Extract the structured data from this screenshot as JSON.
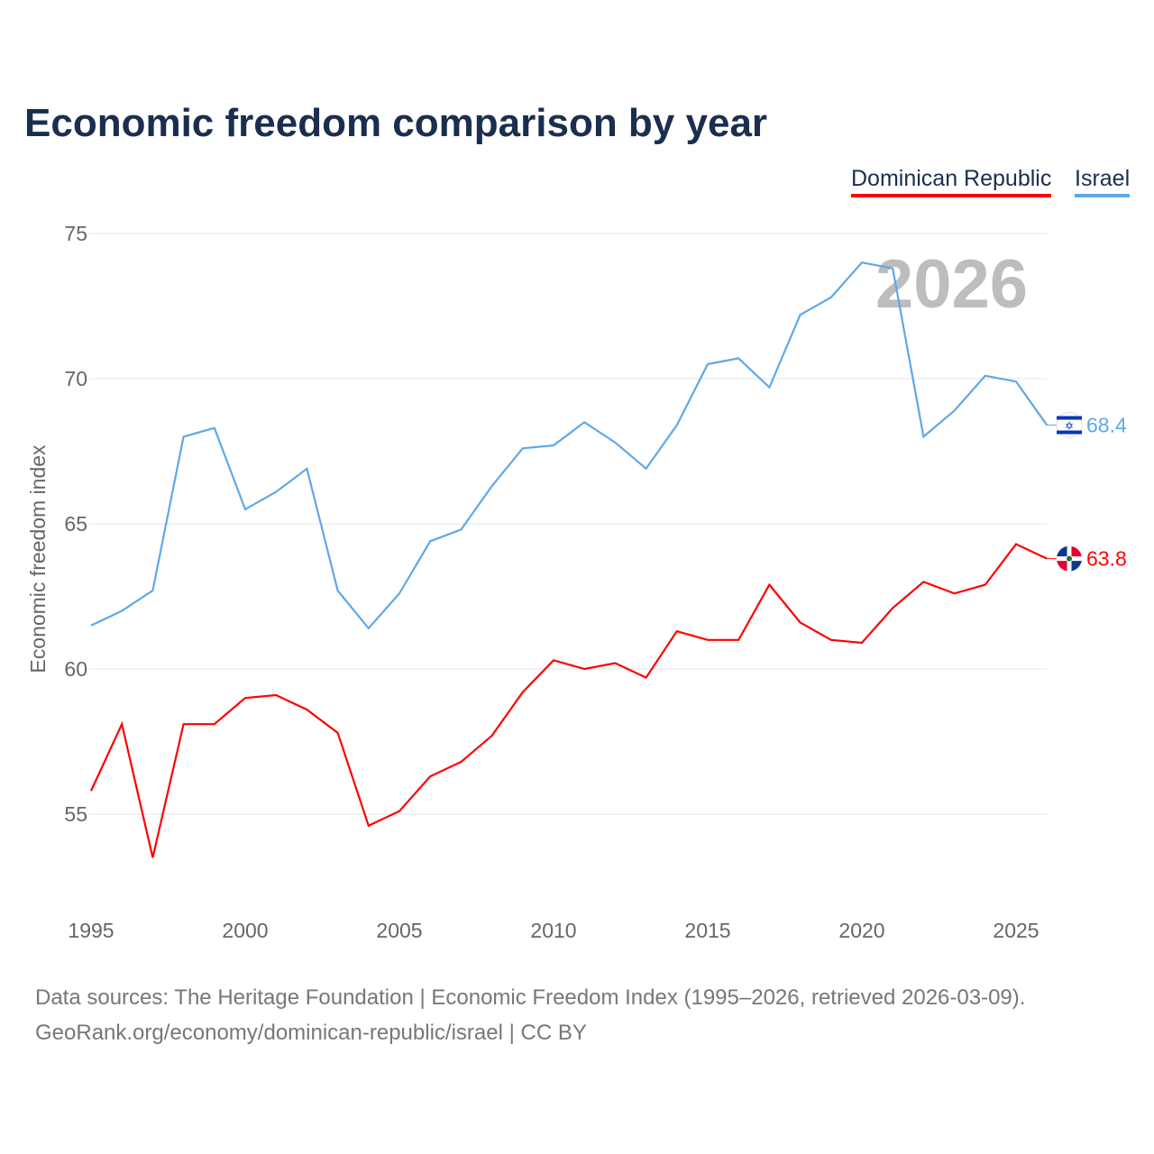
{
  "title": "Economic freedom comparison by year",
  "footer": {
    "line1": "Data sources: The Heritage Foundation | Economic Freedom Index (1995–2026, retrieved 2026-03-09).",
    "line2": "GeoRank.org/economy/dominican-republic/israel | CC BY"
  },
  "chart_data": {
    "type": "line",
    "title": "Economic freedom comparison by year",
    "ylabel": "Economic freedom index",
    "xlabel": "",
    "watermark": "2026",
    "ylim": [
      52,
      76
    ],
    "yticks": [
      55,
      60,
      65,
      70,
      75
    ],
    "xticks": [
      1995,
      2000,
      2005,
      2010,
      2015,
      2020,
      2025
    ],
    "legend_position": "top-right",
    "x": [
      1995,
      1996,
      1997,
      1998,
      1999,
      2000,
      2001,
      2002,
      2003,
      2004,
      2005,
      2006,
      2007,
      2008,
      2009,
      2010,
      2011,
      2012,
      2013,
      2014,
      2015,
      2016,
      2017,
      2018,
      2019,
      2020,
      2021,
      2022,
      2023,
      2024,
      2025,
      2026
    ],
    "series": [
      {
        "name": "Dominican Republic",
        "color": "#ff0000",
        "end_label": "63.8",
        "flag": "dominican-republic-flag",
        "values": [
          55.8,
          58.1,
          53.5,
          58.1,
          58.1,
          59.0,
          59.1,
          58.6,
          57.8,
          54.6,
          55.1,
          56.3,
          56.8,
          57.7,
          59.2,
          60.3,
          60.0,
          60.2,
          59.7,
          61.3,
          61.0,
          61.0,
          62.9,
          61.6,
          61.0,
          60.9,
          62.1,
          63.0,
          62.6,
          62.9,
          64.3,
          63.8
        ]
      },
      {
        "name": "Israel",
        "color": "#5fa8e8",
        "end_label": "68.4",
        "flag": "israel-flag",
        "values": [
          61.5,
          62.0,
          62.7,
          68.0,
          68.3,
          65.5,
          66.1,
          66.9,
          62.7,
          61.4,
          62.6,
          64.4,
          64.8,
          66.3,
          67.6,
          67.7,
          68.5,
          67.8,
          66.9,
          68.4,
          70.5,
          70.7,
          69.7,
          72.2,
          72.8,
          74.0,
          73.8,
          68.0,
          68.9,
          70.1,
          69.9,
          68.4
        ]
      }
    ]
  }
}
